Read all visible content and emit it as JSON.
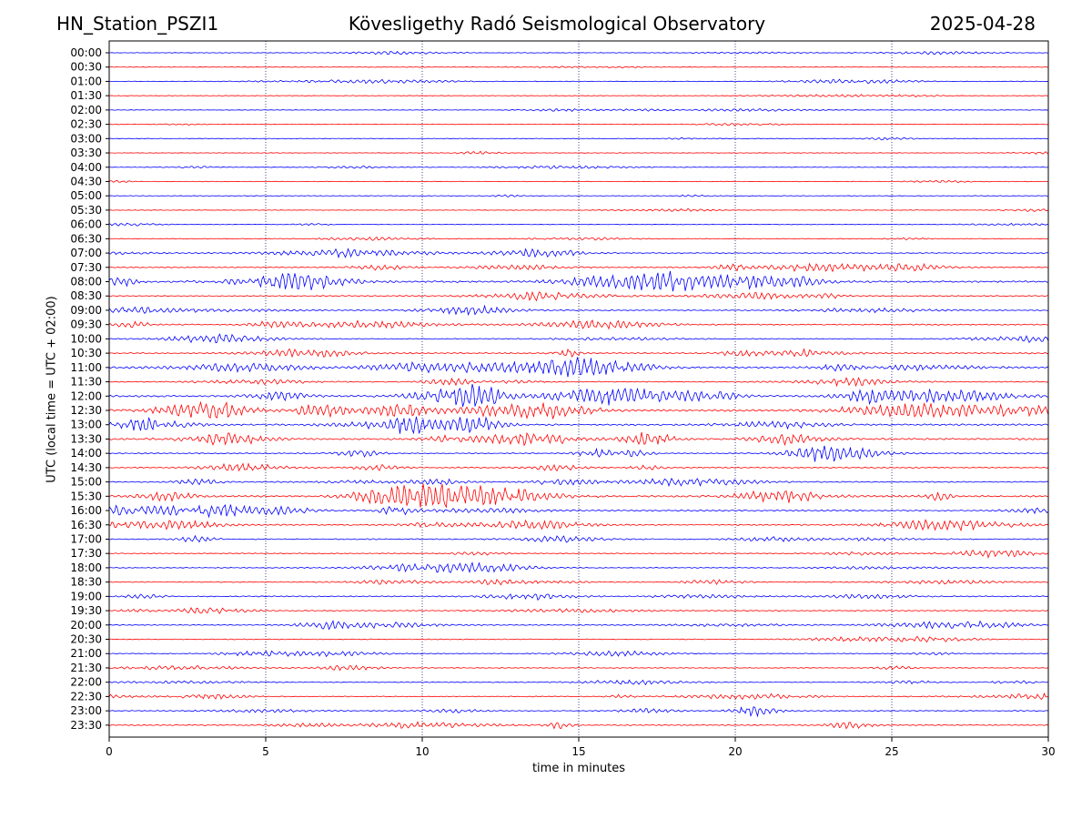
{
  "header": {
    "station": "HN_Station_PSZI1",
    "observatory": "Kövesligethy Radó Seismological Observatory",
    "date": "2025-04-28"
  },
  "chart_data": {
    "type": "line",
    "title": "Kövesligethy Radó Seismological Observatory",
    "xlabel": "time in minutes",
    "ylabel": "UTC (local time = UTC + 02:00)",
    "xlim": [
      0,
      30
    ],
    "x_ticks": [
      "0",
      "5",
      "10",
      "15",
      "20",
      "25",
      "30"
    ],
    "x_tick_values": [
      0,
      5,
      10,
      15,
      20,
      25,
      30
    ],
    "grid": "vertical dotted at each x tick",
    "trace_colors": [
      "#0000ff",
      "#ff0000"
    ],
    "row_labels": [
      "00:00",
      "00:30",
      "01:00",
      "01:30",
      "02:00",
      "02:30",
      "03:00",
      "03:30",
      "04:00",
      "04:30",
      "05:00",
      "05:30",
      "06:00",
      "06:30",
      "07:00",
      "07:30",
      "08:00",
      "08:30",
      "09:00",
      "09:30",
      "10:00",
      "10:30",
      "11:00",
      "11:30",
      "12:00",
      "12:30",
      "13:00",
      "13:30",
      "14:00",
      "14:30",
      "15:00",
      "15:30",
      "16:00",
      "16:30",
      "17:00",
      "17:30",
      "18:00",
      "18:30",
      "19:00",
      "19:30",
      "20:00",
      "20:30",
      "21:00",
      "21:30",
      "22:00",
      "22:30",
      "23:00",
      "23:30"
    ],
    "activity": [
      0.5,
      0.5,
      0.6,
      0.5,
      0.5,
      0.5,
      0.5,
      0.5,
      0.5,
      0.5,
      0.5,
      0.5,
      0.5,
      0.6,
      1.0,
      1.4,
      2.2,
      1.3,
      1.0,
      1.4,
      1.0,
      1.6,
      2.0,
      1.2,
      2.4,
      2.8,
      2.0,
      2.2,
      1.4,
      1.4,
      1.3,
      2.2,
      1.8,
      1.6,
      1.2,
      1.0,
      0.9,
      1.0,
      1.2,
      1.0,
      1.1,
      0.9,
      0.9,
      0.9,
      0.9,
      1.0,
      1.0,
      1.2
    ]
  }
}
